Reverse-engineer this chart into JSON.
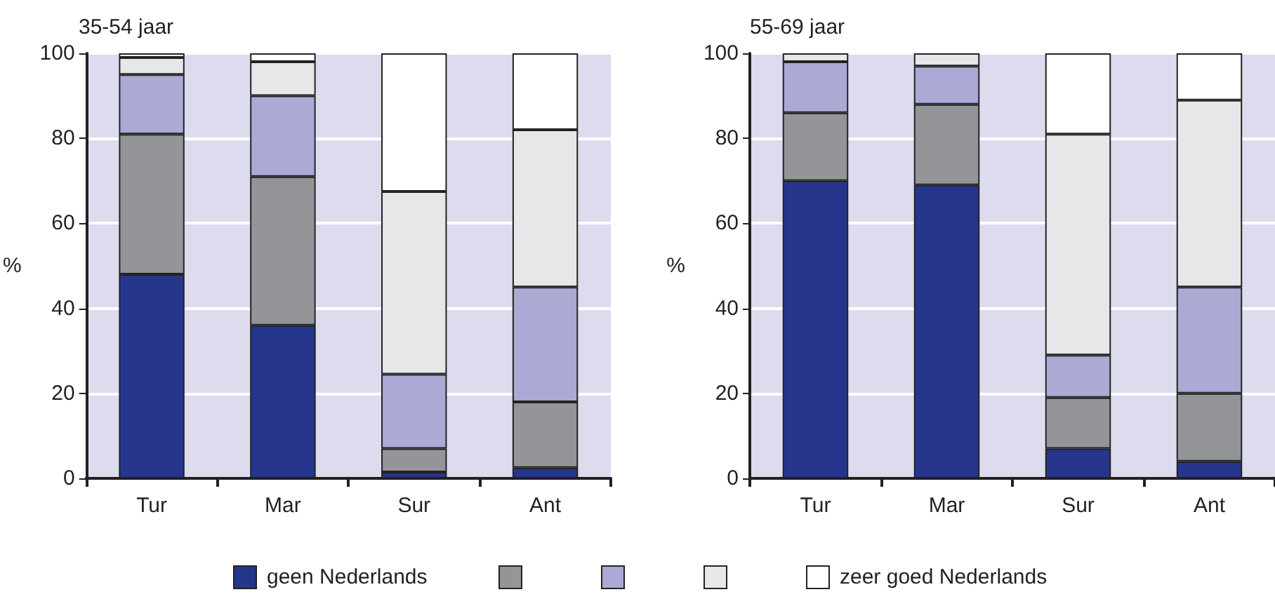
{
  "chart_data": [
    {
      "type": "bar",
      "title": "35-54 jaar",
      "ylabel": "%",
      "categories": [
        "Tur",
        "Mar",
        "Sur",
        "Ant"
      ],
      "stacked": true,
      "ylim": [
        0,
        100
      ],
      "yticks": [
        0,
        20,
        40,
        60,
        80,
        100
      ],
      "grid": "y",
      "legend": "bottom",
      "series": [
        {
          "name": "geen Nederlands",
          "color": "#25368c",
          "values": [
            48,
            36,
            1.5,
            2.5
          ]
        },
        {
          "color": "#939598",
          "values": [
            33,
            35,
            5.5,
            15.5
          ]
        },
        {
          "color": "#aaaad4",
          "values": [
            14,
            19,
            17.5,
            27
          ]
        },
        {
          "color": "#e6e7e9",
          "values": [
            4,
            8,
            43,
            37
          ]
        },
        {
          "name": "zeer goed Nederlands",
          "color": "#ffffff",
          "values": [
            1,
            2,
            32.5,
            18
          ]
        }
      ]
    },
    {
      "type": "bar",
      "title": "55-69 jaar",
      "ylabel": "%",
      "categories": [
        "Tur",
        "Mar",
        "Sur",
        "Ant"
      ],
      "stacked": true,
      "ylim": [
        0,
        100
      ],
      "yticks": [
        0,
        20,
        40,
        60,
        80,
        100
      ],
      "grid": "y",
      "legend": false,
      "series": [
        {
          "color": "#25368c",
          "values": [
            70,
            69,
            7,
            4
          ]
        },
        {
          "color": "#939598",
          "values": [
            16,
            19,
            12,
            16
          ]
        },
        {
          "color": "#aaaad4",
          "values": [
            12,
            9,
            10,
            25
          ]
        },
        {
          "color": "#e6e7e9",
          "values": [
            2,
            3,
            52,
            44
          ]
        },
        {
          "color": "#ffffff",
          "values": [
            0,
            0,
            19,
            11
          ]
        }
      ]
    }
  ]
}
